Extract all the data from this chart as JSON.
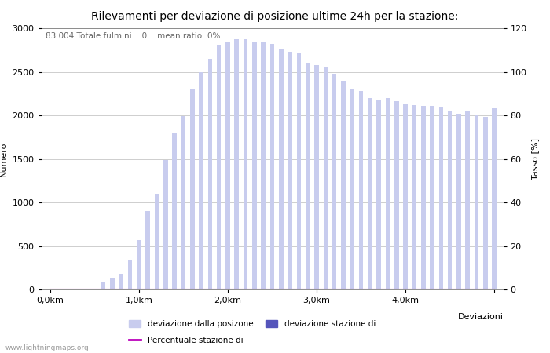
{
  "title": "Rilevamenti per deviazione di posizione ultime 24h per la stazione:",
  "subtitle": "83.004 Totale fulmini    0    mean ratio: 0%",
  "xlabel": "Deviazioni",
  "ylabel_left": "Numero",
  "ylabel_right": "Tasso [%]",
  "watermark": "www.lightningmaps.org",
  "bar_values": [
    0,
    0,
    5,
    0,
    0,
    0,
    80,
    130,
    180,
    340,
    570,
    900,
    1100,
    1490,
    1800,
    1990,
    2310,
    2500,
    2650,
    2800,
    2850,
    2870,
    2870,
    2840,
    2840,
    2820,
    2770,
    2730,
    2720,
    2600,
    2580,
    2560,
    2480,
    2400,
    2310,
    2280,
    2200,
    2180,
    2200,
    2160,
    2130,
    2120,
    2110,
    2110,
    2100,
    2050,
    2020,
    2050,
    2010,
    1980,
    2080
  ],
  "blue_bar_values": [
    0,
    0,
    0,
    0,
    0,
    0,
    0,
    0,
    0,
    0,
    0,
    0,
    0,
    0,
    0,
    0,
    0,
    0,
    0,
    0,
    0,
    0,
    0,
    0,
    0,
    0,
    0,
    0,
    0,
    0,
    0,
    0,
    0,
    0,
    0,
    0,
    0,
    0,
    0,
    0,
    0,
    0,
    0,
    0,
    0,
    0,
    0,
    0,
    0,
    0,
    0
  ],
  "line_values": [
    0,
    0,
    0,
    0,
    0,
    0,
    0,
    0,
    0,
    0,
    0,
    0,
    0,
    0,
    0,
    0,
    0,
    0,
    0,
    0,
    0,
    0,
    0,
    0,
    0,
    0,
    0,
    0,
    0,
    0,
    0,
    0,
    0,
    0,
    0,
    0,
    0,
    0,
    0,
    0,
    0,
    0,
    0,
    0,
    0,
    0,
    0,
    0,
    0,
    0,
    0
  ],
  "n_bars": 51,
  "xtick_positions": [
    0,
    10,
    20,
    30,
    40,
    50
  ],
  "xtick_labels": [
    "0,0km",
    "1,0km",
    "2,0km",
    "3,0km",
    "4,0km",
    ""
  ],
  "ylim_left": [
    0,
    3000
  ],
  "ylim_right": [
    0,
    120
  ],
  "yticks_left": [
    0,
    500,
    1000,
    1500,
    2000,
    2500,
    3000
  ],
  "yticks_right": [
    0,
    20,
    40,
    60,
    80,
    100,
    120
  ],
  "bar_color_light": "#c8ccee",
  "bar_color_dark": "#5555bb",
  "line_color": "#bb00bb",
  "grid_color": "#bbbbbb",
  "bg_color": "#ffffff",
  "title_fontsize": 10,
  "label_fontsize": 8,
  "tick_fontsize": 8,
  "subtitle_fontsize": 7.5,
  "legend_labels": [
    "deviazione dalla posizone",
    "deviazione stazione di",
    "Percentuale stazione di"
  ]
}
